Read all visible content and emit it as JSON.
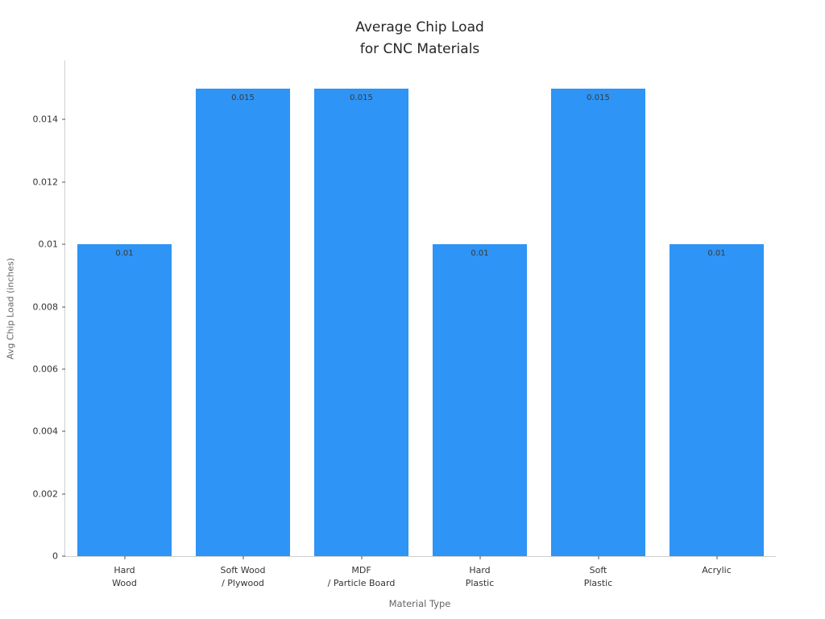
{
  "chart_data": {
    "type": "bar",
    "title": "Average Chip Load\nfor CNC Materials",
    "xlabel": "Material Type",
    "ylabel": "Avg Chip Load (inches)",
    "categories": [
      "Hard\nWood",
      "Soft Wood\n/ Plywood",
      "MDF\n/ Particle Board",
      "Hard\nPlastic",
      "Soft\nPlastic",
      "Acrylic"
    ],
    "values": [
      0.01,
      0.015,
      0.015,
      0.01,
      0.015,
      0.01
    ],
    "bar_labels": [
      "0.01",
      "0.015",
      "0.015",
      "0.01",
      "0.015",
      "0.01"
    ],
    "ytick_values": [
      0,
      0.002,
      0.004,
      0.006,
      0.008,
      0.01,
      0.012,
      0.014
    ],
    "ytick_labels": [
      "0",
      "0.002",
      "0.004",
      "0.006",
      "0.008",
      "0.01",
      "0.012",
      "0.014"
    ],
    "ylim": [
      0,
      0.0159
    ],
    "bar_color": "#2E94F5",
    "bar_width_fraction": 0.8,
    "grid": false,
    "legend_position": "none"
  }
}
